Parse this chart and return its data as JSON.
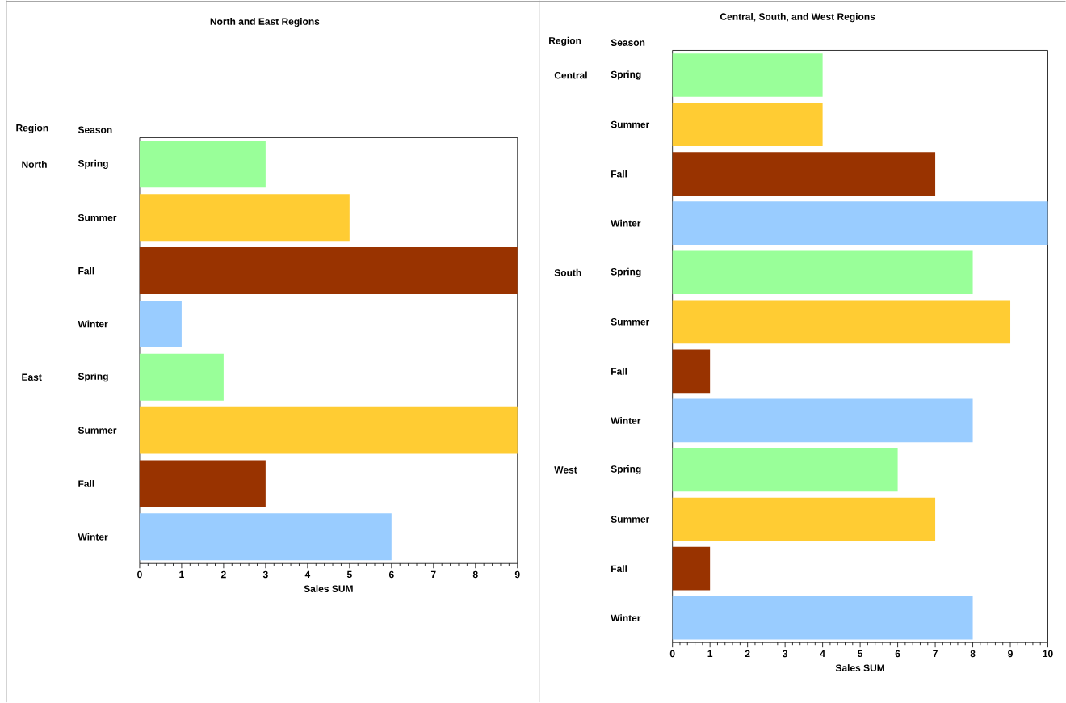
{
  "chart_data": [
    {
      "type": "bar",
      "orientation": "horizontal",
      "title": "North and East Regions",
      "xlabel": "Sales SUM",
      "categories": [
        "Spring",
        "Summer",
        "Fall",
        "Winter",
        "Spring",
        "Summer",
        "Fall",
        "Winter"
      ],
      "values": [
        3,
        5,
        9,
        1,
        2,
        9,
        3,
        6
      ],
      "colors": [
        "#99ff99",
        "#ffcc33",
        "#993300",
        "#99ccff",
        "#99ff99",
        "#ffcc33",
        "#993300",
        "#99ccff"
      ],
      "xlim": [
        0,
        9
      ],
      "xticks": [
        0,
        1,
        2,
        3,
        4,
        5,
        6,
        7,
        8,
        9
      ],
      "annotations": [
        "Region",
        "Season",
        "North",
        "East"
      ]
    },
    {
      "type": "bar",
      "orientation": "horizontal",
      "title": "Central, South, and West Regions",
      "xlabel": "Sales SUM",
      "categories": [
        "Spring",
        "Summer",
        "Fall",
        "Winter",
        "Spring",
        "Summer",
        "Fall",
        "Winter",
        "Spring",
        "Summer",
        "Fall",
        "Winter"
      ],
      "values": [
        4,
        4,
        7,
        10,
        8,
        9,
        1,
        8,
        6,
        7,
        1,
        8
      ],
      "colors": [
        "#99ff99",
        "#ffcc33",
        "#993300",
        "#99ccff",
        "#99ff99",
        "#ffcc33",
        "#993300",
        "#99ccff",
        "#99ff99",
        "#ffcc33",
        "#993300",
        "#99ccff"
      ],
      "xlim": [
        0,
        10
      ],
      "xticks": [
        0,
        1,
        2,
        3,
        4,
        5,
        6,
        7,
        8,
        9,
        10
      ],
      "annotations": [
        "Region",
        "Season",
        "Central",
        "South",
        "West"
      ]
    }
  ]
}
